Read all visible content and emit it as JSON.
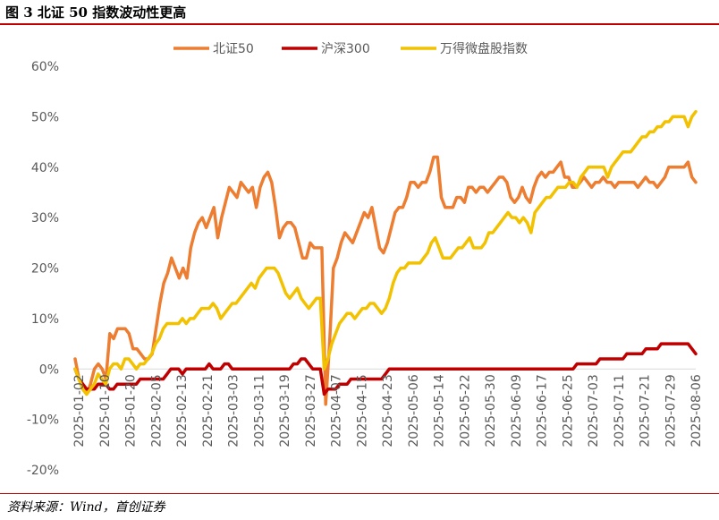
{
  "header": {
    "title": "图 3  北证 50 指数波动性更高"
  },
  "footer": {
    "source": "资料来源：Wind，首创证券"
  },
  "chart_data": {
    "type": "line",
    "title": "",
    "xlabel": "",
    "ylabel": "",
    "ylim": [
      -0.2,
      0.6
    ],
    "yticks": [
      "60%",
      "50%",
      "40%",
      "30%",
      "20%",
      "10%",
      "0%",
      "-10%",
      "-20%"
    ],
    "ytick_values": [
      0.6,
      0.5,
      0.4,
      0.3,
      0.2,
      0.1,
      0.0,
      -0.1,
      -0.2
    ],
    "xticks": [
      "2025-01-02",
      "2025-01-10",
      "2025-01-20",
      "2025-02-05",
      "2025-02-13",
      "2025-02-21",
      "2025-03-03",
      "2025-03-11",
      "2025-03-19",
      "2025-03-27",
      "2025-04-07",
      "2025-04-15",
      "2025-04-23",
      "2025-05-06",
      "2025-05-14",
      "2025-05-22",
      "2025-05-30",
      "2025-06-09",
      "2025-06-17",
      "2025-06-25",
      "2025-07-03",
      "2025-07-11",
      "2025-07-21",
      "2025-07-29",
      "2025-08-06"
    ],
    "legend_position": "top",
    "grid": false,
    "series": [
      {
        "name": "北证50",
        "color": "#ED7D31",
        "values": [
          0.02,
          -0.02,
          -0.04,
          -0.05,
          -0.03,
          0.0,
          0.01,
          0.0,
          -0.02,
          0.07,
          0.06,
          0.08,
          0.08,
          0.08,
          0.07,
          0.04,
          0.04,
          0.03,
          0.02,
          0.02,
          0.03,
          0.08,
          0.13,
          0.17,
          0.19,
          0.22,
          0.2,
          0.18,
          0.2,
          0.18,
          0.24,
          0.27,
          0.29,
          0.3,
          0.28,
          0.3,
          0.32,
          0.26,
          0.3,
          0.33,
          0.36,
          0.35,
          0.34,
          0.37,
          0.36,
          0.35,
          0.36,
          0.32,
          0.36,
          0.38,
          0.39,
          0.37,
          0.32,
          0.26,
          0.28,
          0.29,
          0.29,
          0.28,
          0.25,
          0.22,
          0.22,
          0.25,
          0.24,
          0.24,
          0.24,
          -0.07,
          0.05,
          0.2,
          0.22,
          0.25,
          0.27,
          0.26,
          0.25,
          0.27,
          0.29,
          0.31,
          0.3,
          0.32,
          0.28,
          0.24,
          0.23,
          0.25,
          0.28,
          0.31,
          0.32,
          0.32,
          0.34,
          0.37,
          0.37,
          0.36,
          0.37,
          0.37,
          0.39,
          0.42,
          0.42,
          0.34,
          0.32,
          0.32,
          0.32,
          0.34,
          0.34,
          0.33,
          0.36,
          0.36,
          0.35,
          0.36,
          0.36,
          0.35,
          0.36,
          0.37,
          0.38,
          0.38,
          0.37,
          0.34,
          0.33,
          0.34,
          0.36,
          0.34,
          0.33,
          0.36,
          0.38,
          0.39,
          0.38,
          0.39,
          0.39,
          0.4,
          0.41,
          0.38,
          0.38,
          0.36,
          0.36,
          0.37,
          0.38,
          0.37,
          0.36,
          0.37,
          0.37,
          0.38,
          0.37,
          0.37,
          0.36,
          0.37,
          0.37,
          0.37,
          0.37,
          0.37,
          0.36,
          0.37,
          0.38,
          0.37,
          0.37,
          0.36,
          0.37,
          0.38,
          0.4,
          0.4,
          0.4,
          0.4,
          0.4,
          0.41,
          0.38,
          0.37
        ]
      },
      {
        "name": "沪深300",
        "color": "#C00000",
        "values": [
          0.0,
          -0.02,
          -0.03,
          -0.04,
          -0.04,
          -0.04,
          -0.03,
          -0.03,
          -0.03,
          -0.04,
          -0.04,
          -0.03,
          -0.03,
          -0.03,
          -0.03,
          -0.03,
          -0.03,
          -0.02,
          -0.02,
          -0.02,
          -0.02,
          -0.02,
          -0.02,
          -0.02,
          -0.01,
          0.0,
          0.0,
          0.0,
          -0.01,
          0.0,
          0.0,
          0.0,
          0.0,
          0.0,
          0.0,
          0.01,
          0.0,
          0.0,
          0.0,
          0.01,
          0.01,
          0.0,
          0.0,
          0.0,
          0.0,
          0.0,
          0.0,
          0.0,
          0.0,
          0.0,
          0.0,
          0.0,
          0.0,
          0.0,
          0.0,
          0.0,
          0.0,
          0.01,
          0.01,
          0.02,
          0.02,
          0.01,
          0.0,
          0.0,
          0.0,
          -0.05,
          -0.04,
          -0.04,
          -0.04,
          -0.03,
          -0.03,
          -0.03,
          -0.02,
          -0.02,
          -0.02,
          -0.02,
          -0.02,
          -0.02,
          -0.02,
          -0.02,
          -0.02,
          -0.01,
          0.0,
          0.0,
          0.0,
          0.0,
          0.0,
          0.0,
          0.0,
          0.0,
          0.0,
          0.0,
          0.0,
          0.0,
          0.0,
          0.0,
          0.0,
          0.0,
          0.0,
          0.0,
          0.0,
          0.0,
          0.0,
          0.0,
          0.0,
          0.0,
          0.0,
          0.0,
          0.0,
          0.0,
          0.0,
          0.0,
          0.0,
          0.0,
          0.0,
          0.0,
          0.0,
          0.0,
          0.0,
          0.0,
          0.0,
          0.0,
          0.0,
          0.0,
          0.0,
          0.0,
          0.0,
          0.0,
          0.0,
          0.0,
          0.0,
          0.01,
          0.01,
          0.01,
          0.01,
          0.01,
          0.01,
          0.02,
          0.02,
          0.02,
          0.02,
          0.02,
          0.02,
          0.02,
          0.03,
          0.03,
          0.03,
          0.03,
          0.03,
          0.04,
          0.04,
          0.04,
          0.04,
          0.05,
          0.05,
          0.05,
          0.05,
          0.05,
          0.05,
          0.05,
          0.05,
          0.04,
          0.03
        ]
      },
      {
        "name": "万得微盘股指数",
        "color": "#F2C200",
        "values": [
          0.0,
          -0.02,
          -0.04,
          -0.05,
          -0.04,
          -0.03,
          -0.01,
          -0.02,
          -0.03,
          0.0,
          0.01,
          0.01,
          0.0,
          0.02,
          0.02,
          0.01,
          0.0,
          0.01,
          0.01,
          0.02,
          0.03,
          0.05,
          0.06,
          0.08,
          0.09,
          0.09,
          0.09,
          0.09,
          0.1,
          0.09,
          0.1,
          0.1,
          0.11,
          0.12,
          0.12,
          0.12,
          0.13,
          0.12,
          0.1,
          0.11,
          0.12,
          0.13,
          0.13,
          0.14,
          0.15,
          0.16,
          0.17,
          0.16,
          0.18,
          0.19,
          0.2,
          0.2,
          0.2,
          0.19,
          0.17,
          0.15,
          0.14,
          0.15,
          0.16,
          0.14,
          0.13,
          0.12,
          0.13,
          0.14,
          0.14,
          0.0,
          0.02,
          0.05,
          0.07,
          0.09,
          0.1,
          0.11,
          0.11,
          0.1,
          0.11,
          0.12,
          0.12,
          0.13,
          0.13,
          0.12,
          0.11,
          0.12,
          0.14,
          0.17,
          0.19,
          0.2,
          0.2,
          0.21,
          0.21,
          0.21,
          0.21,
          0.22,
          0.23,
          0.25,
          0.26,
          0.24,
          0.22,
          0.22,
          0.22,
          0.23,
          0.24,
          0.24,
          0.25,
          0.26,
          0.24,
          0.24,
          0.24,
          0.25,
          0.27,
          0.27,
          0.28,
          0.29,
          0.3,
          0.31,
          0.3,
          0.3,
          0.29,
          0.3,
          0.29,
          0.27,
          0.31,
          0.32,
          0.33,
          0.34,
          0.34,
          0.35,
          0.36,
          0.36,
          0.36,
          0.37,
          0.37,
          0.36,
          0.38,
          0.39,
          0.4,
          0.4,
          0.4,
          0.4,
          0.4,
          0.38,
          0.4,
          0.41,
          0.42,
          0.43,
          0.43,
          0.43,
          0.44,
          0.45,
          0.46,
          0.46,
          0.47,
          0.47,
          0.48,
          0.48,
          0.49,
          0.49,
          0.5,
          0.5,
          0.5,
          0.5,
          0.48,
          0.5,
          0.51
        ]
      }
    ]
  }
}
